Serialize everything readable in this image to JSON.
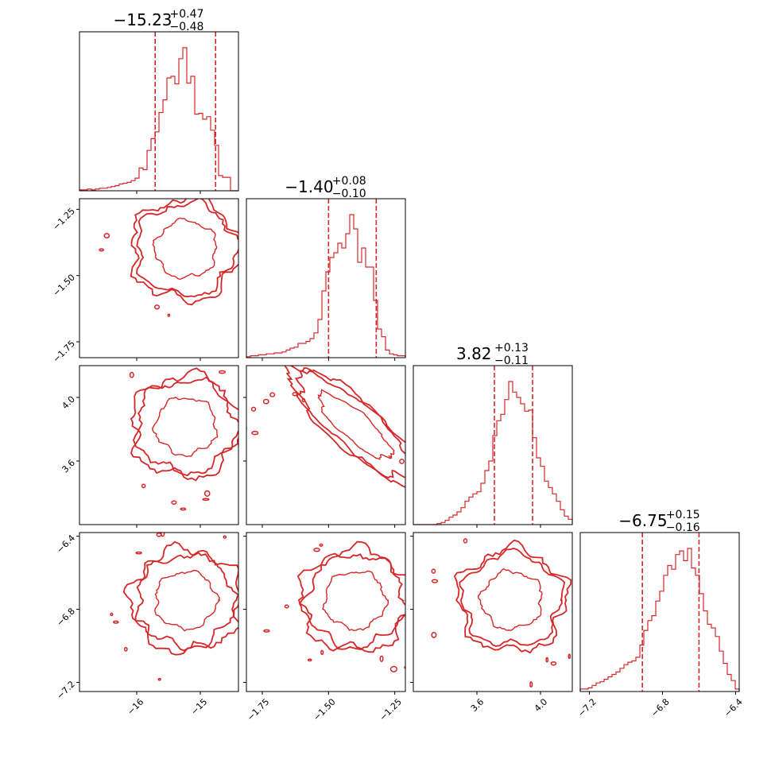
{
  "colors": {
    "accent": "#d62728",
    "frame": "#000000",
    "background": "#ffffff"
  },
  "chart_data": {
    "type": "corner",
    "grid": false,
    "parameters": [
      {
        "index": 0,
        "range": [
          -16.9,
          -14.4
        ],
        "ticks": [
          -16,
          -15
        ],
        "tick_labels": [
          "−16",
          "−15"
        ],
        "median": -15.23,
        "upper_err": 0.47,
        "lower_err": 0.48,
        "title_main": "−15.23",
        "title_sup": "+0.47",
        "title_sub": "−0.48"
      },
      {
        "index": 1,
        "range": [
          -1.81,
          -1.21
        ],
        "ticks": [
          -1.75,
          -1.5,
          -1.25
        ],
        "tick_labels": [
          "−1.75",
          "−1.50",
          "−1.25"
        ],
        "median": -1.4,
        "upper_err": 0.08,
        "lower_err": 0.1,
        "title_main": "−1.40",
        "title_sup": "+0.08",
        "title_sub": "−0.10"
      },
      {
        "index": 2,
        "range": [
          3.2,
          4.2
        ],
        "ticks": [
          3.6,
          4.0
        ],
        "tick_labels": [
          "3.6",
          "4.0"
        ],
        "median": 3.82,
        "upper_err": 0.13,
        "lower_err": 0.11,
        "title_main": "3.82",
        "title_sup": "+0.13",
        "title_sub": "−0.11"
      },
      {
        "index": 3,
        "range": [
          -7.25,
          -6.38
        ],
        "ticks": [
          -7.2,
          -6.8,
          -6.4
        ],
        "tick_labels": [
          "−7.2",
          "−6.8",
          "−6.4"
        ],
        "median": -6.75,
        "upper_err": 0.15,
        "lower_err": 0.16,
        "title_main": "−6.75",
        "title_sup": "+0.15",
        "title_sub": "−0.16"
      }
    ],
    "histograms": [
      {
        "param": 0,
        "quantile_lines": [
          -15.71,
          -14.76
        ],
        "counts": [
          1,
          1,
          2,
          1,
          2,
          3,
          3,
          4,
          5,
          6,
          8,
          9,
          10,
          12,
          15,
          27,
          25,
          48,
          62,
          70,
          93,
          108,
          134,
          136,
          127,
          157,
          170,
          128,
          136,
          91,
          92,
          85,
          88,
          72,
          54,
          18,
          16,
          16,
          0,
          0
        ]
      },
      {
        "param": 1,
        "quantile_lines": [
          -1.5,
          -1.32
        ],
        "counts": [
          1,
          2,
          2,
          3,
          3,
          4,
          4,
          5,
          5,
          6,
          8,
          10,
          11,
          15,
          15,
          17,
          20,
          26,
          40,
          70,
          90,
          105,
          110,
          120,
          115,
          130,
          150,
          135,
          100,
          115,
          95,
          95,
          60,
          30,
          22,
          8,
          4,
          3,
          2,
          2
        ]
      },
      {
        "param": 2,
        "quantile_lines": [
          3.71,
          3.95
        ],
        "counts": [
          0,
          0,
          0,
          0,
          0,
          0,
          1,
          2,
          4,
          7,
          9,
          12,
          16,
          22,
          26,
          29,
          31,
          39,
          51,
          60,
          84,
          98,
          104,
          118,
          135,
          125,
          120,
          114,
          107,
          108,
          82,
          63,
          55,
          41,
          35,
          29,
          22,
          14,
          8,
          5
        ]
      },
      {
        "param": 3,
        "quantile_lines": [
          -6.91,
          -6.6
        ],
        "counts": [
          2,
          2,
          3,
          5,
          7,
          8,
          10,
          12,
          14,
          16,
          19,
          22,
          24,
          25,
          28,
          38,
          50,
          58,
          62,
          74,
          82,
          95,
          103,
          100,
          112,
          115,
          107,
          117,
          101,
          95,
          80,
          66,
          55,
          52,
          45,
          33,
          23,
          14,
          9,
          2
        ]
      }
    ],
    "contour_panels": [
      {
        "x_param": 0,
        "y_param": 1,
        "levels": [
          "inner",
          "middle",
          "outer"
        ]
      },
      {
        "x_param": 0,
        "y_param": 2,
        "levels": [
          "inner",
          "middle",
          "outer"
        ]
      },
      {
        "x_param": 1,
        "y_param": 2,
        "levels": [
          "inner",
          "middle",
          "outer"
        ]
      },
      {
        "x_param": 0,
        "y_param": 3,
        "levels": [
          "inner",
          "middle",
          "outer"
        ]
      },
      {
        "x_param": 1,
        "y_param": 3,
        "levels": [
          "inner",
          "middle",
          "outer"
        ]
      },
      {
        "x_param": 2,
        "y_param": 3,
        "levels": [
          "inner",
          "middle",
          "outer"
        ]
      }
    ]
  }
}
